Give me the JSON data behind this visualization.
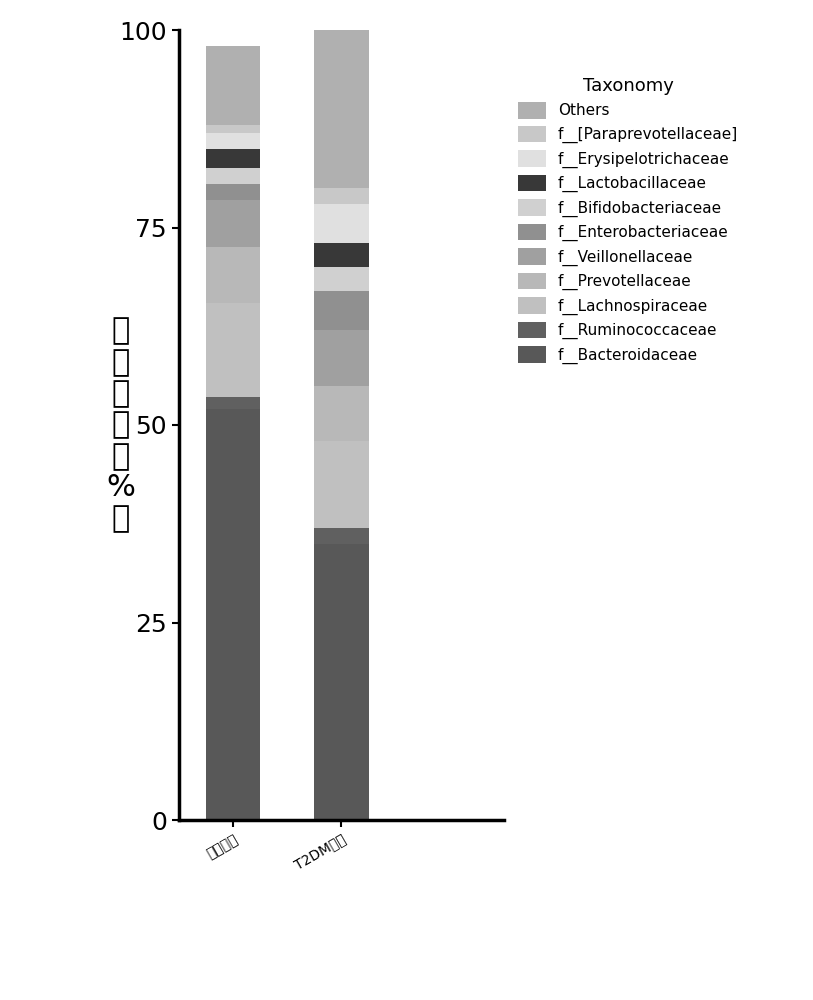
{
  "categories": [
    "健康对照",
    "T2DM患者"
  ],
  "taxonomy_labels": [
    "f__Bacteroidaceae",
    "f__Ruminococcaceae",
    "f__Lachnospiraceae",
    "f__Prevotellaceae",
    "f__Veillonellaceae",
    "f__Enterobacteriaceae",
    "f__Bifidobacteriaceae",
    "f__Lactobacillaceae",
    "f__Erysipelotrichaceae",
    "f__[Paraprevotellaceae]",
    "Others"
  ],
  "colors": [
    "#585858",
    "#606060",
    "#c0c0c0",
    "#b8b8b8",
    "#a0a0a0",
    "#909090",
    "#d0d0d0",
    "#383838",
    "#e0e0e0",
    "#c8c8c8",
    "#b0b0b0"
  ],
  "values": [
    [
      52.0,
      35.0
    ],
    [
      1.5,
      2.0
    ],
    [
      12.0,
      11.0
    ],
    [
      7.0,
      7.0
    ],
    [
      6.0,
      7.0
    ],
    [
      2.0,
      5.0
    ],
    [
      2.0,
      3.0
    ],
    [
      2.5,
      3.0
    ],
    [
      2.0,
      5.0
    ],
    [
      1.0,
      2.0
    ],
    [
      10.0,
      20.0
    ]
  ],
  "ylabel_chars": [
    "相",
    "对",
    "丰",
    "度",
    "（",
    "%",
    "）"
  ],
  "legend_title": "Taxonomy",
  "ylim": [
    0,
    100
  ],
  "yticks": [
    0,
    25,
    50,
    75,
    100
  ],
  "bar_width": 0.5,
  "background_color": "#ffffff"
}
